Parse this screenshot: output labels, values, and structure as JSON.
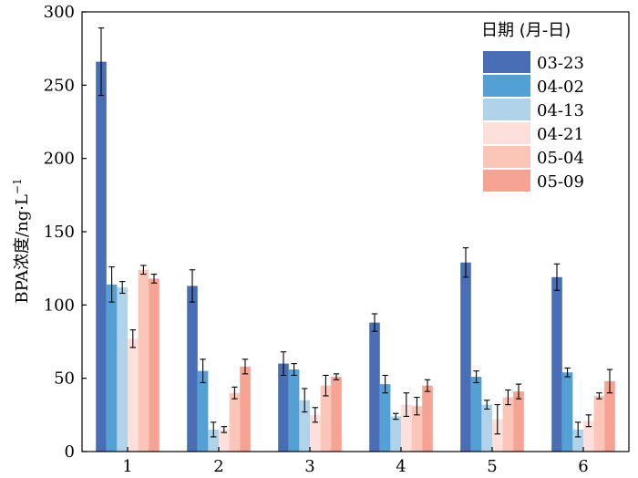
{
  "chart_data": {
    "type": "bar",
    "title": "",
    "xlabel": "",
    "ylabel_main": "BPA浓度/ng·L",
    "ylabel_sup": "−1",
    "ylim": [
      0,
      300
    ],
    "yticks": [
      0,
      50,
      100,
      150,
      200,
      250,
      300
    ],
    "categories": [
      "1",
      "2",
      "3",
      "4",
      "5",
      "6"
    ],
    "legend_title": "日期 (月-日)",
    "legend_position": "top-right",
    "grid": false,
    "series": [
      {
        "name": "03-23",
        "color": "#4a6eb5",
        "values": [
          266,
          113,
          60,
          88,
          129,
          119
        ],
        "errors": [
          23,
          11,
          8,
          6,
          10,
          9
        ]
      },
      {
        "name": "04-02",
        "color": "#52a0d4",
        "values": [
          114,
          55,
          56,
          46,
          51,
          54
        ],
        "errors": [
          12,
          8,
          4,
          6,
          4,
          3
        ]
      },
      {
        "name": "04-13",
        "color": "#b0d3ea",
        "values": [
          112,
          15,
          35,
          24,
          32,
          15
        ],
        "errors": [
          4,
          5,
          8,
          2,
          3,
          5
        ]
      },
      {
        "name": "04-21",
        "color": "#fde0dc",
        "values": [
          77,
          15,
          25,
          32,
          22,
          21
        ],
        "errors": [
          6,
          2,
          5,
          8,
          10,
          4
        ]
      },
      {
        "name": "05-04",
        "color": "#fbc5b8",
        "values": [
          124,
          40,
          45,
          31,
          37,
          38
        ],
        "errors": [
          3,
          4,
          7,
          6,
          5,
          2
        ]
      },
      {
        "name": "05-09",
        "color": "#f7a393",
        "values": [
          118,
          58,
          51,
          45,
          41,
          48
        ],
        "errors": [
          3,
          5,
          2,
          4,
          5,
          8
        ]
      }
    ]
  }
}
